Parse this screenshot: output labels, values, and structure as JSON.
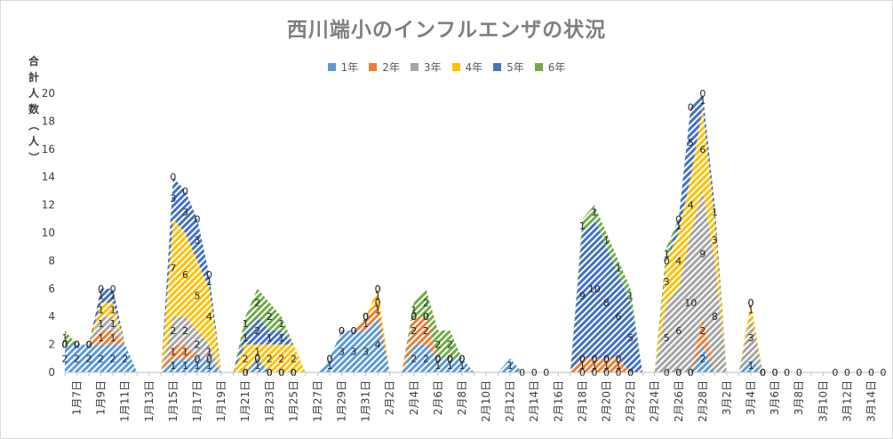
{
  "chart_data": {
    "type": "area",
    "stacked": true,
    "title": "西川端小のインフルエンザの状況",
    "ylabel": "合計人数（人）",
    "ylim": [
      0,
      20
    ],
    "yticks": [
      0,
      2,
      4,
      6,
      8,
      10,
      12,
      14,
      16,
      18,
      20
    ],
    "legend_position": "top",
    "grid": false,
    "categories": [
      "1月6日",
      "1月7日",
      "1月8日",
      "1月9日",
      "1月10日",
      "1月11日",
      "1月12日",
      "1月13日",
      "1月14日",
      "1月15日",
      "1月16日",
      "1月17日",
      "1月18日",
      "1月19日",
      "1月20日",
      "1月21日",
      "1月22日",
      "1月23日",
      "1月24日",
      "1月25日",
      "1月26日",
      "1月27日",
      "1月28日",
      "1月29日",
      "1月30日",
      "1月31日",
      "2月1日",
      "2月2日",
      "2月3日",
      "2月4日",
      "2月5日",
      "2月6日",
      "2月7日",
      "2月8日",
      "2月9日",
      "2月10日",
      "2月11日",
      "2月12日",
      "2月13日",
      "2月14日",
      "2月15日",
      "2月16日",
      "2月17日",
      "2月18日",
      "2月19日",
      "2月20日",
      "2月21日",
      "2月22日",
      "2月23日",
      "2月24日",
      "2月25日",
      "2月26日",
      "2月27日",
      "2月28日",
      "3月1日",
      "3月2日",
      "3月3日",
      "3月4日",
      "3月5日",
      "3月6日",
      "3月7日",
      "3月8日",
      "3月9日",
      "3月10日",
      "3月11日",
      "3月12日",
      "3月13日",
      "3月14日",
      "3月15日"
    ],
    "tick_labels": [
      "1月7日",
      "1月9日",
      "1月11日",
      "1月13日",
      "1月15日",
      "1月17日",
      "1月19日",
      "1月21日",
      "1月23日",
      "1月25日",
      "1月27日",
      "1月29日",
      "1月31日",
      "2月2日",
      "2月4日",
      "2月6日",
      "2月8日",
      "2月10日",
      "2月12日",
      "2月14日",
      "2月16日",
      "2月18日",
      "2月20日",
      "2月22日",
      "2月24日",
      "2月26日",
      "2月28日",
      "3月2日",
      "3月4日",
      "3月6日",
      "3月8日",
      "3月10日",
      "3月12日",
      "3月14日"
    ],
    "series": [
      {
        "name": "1年",
        "color": "#5b9bd5",
        "values": [
          2,
          2,
          2,
          2,
          2,
          2,
          null,
          null,
          null,
          1,
          1,
          1,
          1,
          null,
          null,
          0,
          1,
          0,
          0,
          0,
          null,
          null,
          1,
          3,
          3,
          3,
          4,
          null,
          null,
          2,
          2,
          1,
          1,
          1,
          null,
          null,
          null,
          1,
          0,
          0,
          0,
          null,
          null,
          0,
          0,
          0,
          0,
          0,
          null,
          null,
          0,
          0,
          0,
          2,
          null,
          null,
          null,
          1,
          0,
          0,
          0,
          0,
          null,
          null,
          0,
          0,
          0,
          0,
          0
        ]
      },
      {
        "name": "2年",
        "color": "#ed7d31",
        "values": [
          0,
          0,
          0,
          1,
          1,
          null,
          null,
          null,
          null,
          1,
          1,
          0,
          0,
          null,
          null,
          0,
          0,
          0,
          0,
          0,
          null,
          null,
          0,
          0,
          0,
          1,
          1,
          null,
          null,
          2,
          2,
          0,
          0,
          0,
          null,
          null,
          null,
          null,
          null,
          null,
          null,
          null,
          null,
          1,
          1,
          1,
          1,
          0,
          null,
          null,
          null,
          0,
          0,
          2,
          null,
          null,
          null,
          null,
          null,
          null,
          null,
          null,
          null,
          null,
          null,
          null,
          null,
          null,
          null
        ]
      },
      {
        "name": "3年",
        "color": "#a5a5a5",
        "values": [
          0,
          0,
          0,
          1,
          1,
          null,
          null,
          null,
          null,
          2,
          2,
          2,
          1,
          null,
          null,
          0,
          0,
          0,
          0,
          0,
          null,
          null,
          null,
          null,
          null,
          0,
          0,
          null,
          null,
          0,
          0,
          0,
          0,
          null,
          null,
          null,
          null,
          null,
          null,
          null,
          null,
          null,
          null,
          0,
          0,
          0,
          null,
          null,
          null,
          null,
          5,
          6,
          10,
          9,
          8,
          null,
          null,
          3,
          0,
          0,
          null,
          null,
          null,
          null,
          null,
          null,
          null,
          null,
          null
        ]
      },
      {
        "name": "4年",
        "color": "#ffc000",
        "values": [
          0,
          0,
          0,
          1,
          1,
          null,
          null,
          null,
          null,
          7,
          6,
          5,
          4,
          null,
          null,
          2,
          1,
          2,
          2,
          2,
          null,
          null,
          0,
          0,
          0,
          0,
          1,
          null,
          null,
          0,
          0,
          0,
          0,
          0,
          null,
          null,
          null,
          null,
          null,
          null,
          null,
          null,
          null,
          0,
          0,
          0,
          0,
          0,
          null,
          null,
          3,
          4,
          4,
          6,
          3,
          null,
          null,
          1,
          null,
          null,
          null,
          null,
          null,
          null,
          null,
          null,
          null,
          null,
          null
        ]
      },
      {
        "name": "5年",
        "color": "#4472c4",
        "values": [
          0,
          0,
          0,
          1,
          1,
          null,
          null,
          null,
          null,
          3,
          3,
          3,
          1,
          null,
          null,
          1,
          2,
          1,
          1,
          null,
          null,
          null,
          null,
          null,
          null,
          0,
          0,
          null,
          null,
          0,
          0,
          0,
          0,
          0,
          null,
          null,
          null,
          null,
          null,
          null,
          null,
          null,
          null,
          9,
          10,
          8,
          6,
          5,
          null,
          null,
          0,
          1,
          5,
          1,
          1,
          null,
          null,
          0,
          null,
          null,
          null,
          null,
          null,
          null,
          null,
          null,
          null,
          null,
          null
        ]
      },
      {
        "name": "6年",
        "color": "#70ad47",
        "values": [
          1,
          0,
          0,
          0,
          0,
          null,
          null,
          null,
          null,
          0,
          0,
          0,
          0,
          null,
          null,
          1,
          2,
          2,
          1,
          null,
          null,
          null,
          null,
          null,
          null,
          0,
          0,
          null,
          null,
          1,
          2,
          2,
          2,
          null,
          null,
          null,
          null,
          null,
          null,
          null,
          null,
          null,
          null,
          1,
          1,
          1,
          1,
          1,
          null,
          null,
          1,
          0,
          0,
          0,
          null,
          null,
          null,
          0,
          0,
          null,
          null,
          null,
          null,
          null,
          null,
          null,
          null,
          null,
          null
        ]
      }
    ]
  }
}
